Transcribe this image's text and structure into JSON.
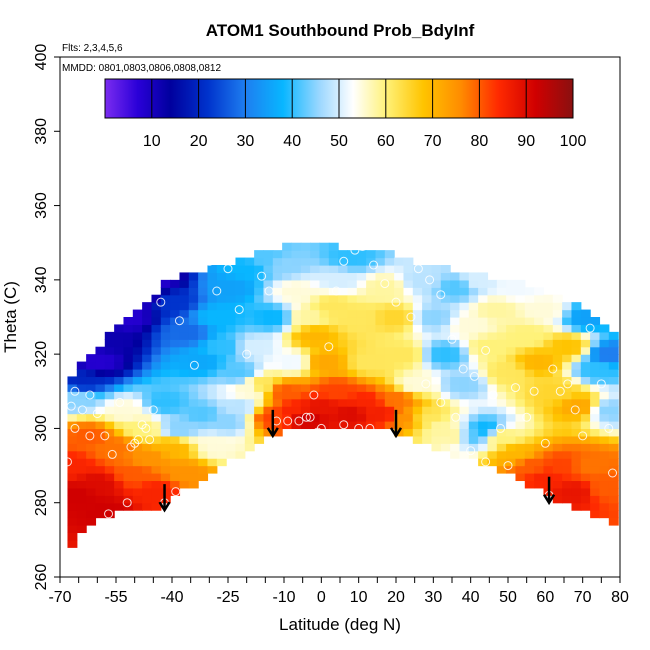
{
  "chart_data": {
    "type": "heatmap",
    "title": "ATOM1 Southbound Prob_BdyInf",
    "notes": {
      "flights": "Flts: 2,3,4,5,6",
      "mmdd": "MMDD: 0801,0803,0806,0808,0812"
    },
    "xlabel": "Latitude (deg N)",
    "ylabel": "Theta (C)",
    "xlim": [
      -70,
      80
    ],
    "ylim": [
      260,
      400
    ],
    "x_ticks_major": [
      -70,
      -55,
      -40,
      -25,
      -10,
      0,
      10,
      20,
      30,
      40,
      50,
      60,
      70,
      80
    ],
    "x_ticks_minor_step": 5,
    "y_ticks": [
      260,
      280,
      300,
      320,
      340,
      360,
      380,
      400
    ],
    "colorbar": {
      "min": 0,
      "max": 100,
      "ticks": [
        10,
        20,
        30,
        40,
        50,
        60,
        70,
        80,
        90,
        100
      ],
      "stops": [
        {
          "v": 0,
          "c": "#7b2cf0"
        },
        {
          "v": 7,
          "c": "#2a00d8"
        },
        {
          "v": 14,
          "c": "#00009e"
        },
        {
          "v": 22,
          "c": "#0033cc"
        },
        {
          "v": 30,
          "c": "#1e7ef0"
        },
        {
          "v": 38,
          "c": "#08b6ff"
        },
        {
          "v": 46,
          "c": "#9ed8ff"
        },
        {
          "v": 53,
          "c": "#ffffff"
        },
        {
          "v": 60,
          "c": "#fff27a"
        },
        {
          "v": 68,
          "c": "#ffc400"
        },
        {
          "v": 76,
          "c": "#ff8c00"
        },
        {
          "v": 84,
          "c": "#ff2a00"
        },
        {
          "v": 92,
          "c": "#d00000"
        },
        {
          "v": 100,
          "c": "#8a1010"
        }
      ]
    },
    "lower_boundary": [
      [
        -68,
        267
      ],
      [
        -62,
        274
      ],
      [
        -55,
        278
      ],
      [
        -48,
        279
      ],
      [
        -43,
        278
      ],
      [
        -38,
        283
      ],
      [
        -30,
        287
      ],
      [
        -23,
        292
      ],
      [
        -16,
        296
      ],
      [
        -10,
        300
      ],
      [
        -5,
        301
      ],
      [
        0,
        300
      ],
      [
        5,
        301
      ],
      [
        12,
        301
      ],
      [
        20,
        299
      ],
      [
        28,
        296
      ],
      [
        35,
        293
      ],
      [
        42,
        291
      ],
      [
        50,
        288
      ],
      [
        57,
        284
      ],
      [
        63,
        281
      ],
      [
        70,
        278
      ],
      [
        78,
        274
      ]
    ],
    "upper_boundary": [
      [
        -68,
        313
      ],
      [
        -62,
        320
      ],
      [
        -55,
        327
      ],
      [
        -48,
        333
      ],
      [
        -42,
        339
      ],
      [
        -35,
        342
      ],
      [
        -25,
        344
      ],
      [
        -15,
        348
      ],
      [
        -5,
        350
      ],
      [
        5,
        349
      ],
      [
        15,
        348
      ],
      [
        25,
        345
      ],
      [
        35,
        343
      ],
      [
        45,
        341
      ],
      [
        55,
        339
      ],
      [
        65,
        335
      ],
      [
        72,
        332
      ],
      [
        78,
        326
      ]
    ],
    "value_nodes": [
      [
        -67,
        290,
        85
      ],
      [
        -65,
        282,
        92
      ],
      [
        -62,
        298,
        80
      ],
      [
        -60,
        285,
        90
      ],
      [
        -58,
        278,
        92
      ],
      [
        -55,
        295,
        78
      ],
      [
        -52,
        305,
        55
      ],
      [
        -50,
        288,
        80
      ],
      [
        -48,
        300,
        60
      ],
      [
        -46,
        292,
        75
      ],
      [
        -44,
        283,
        85
      ],
      [
        -42,
        307,
        40
      ],
      [
        -40,
        295,
        70
      ],
      [
        -38,
        300,
        45
      ],
      [
        -36,
        288,
        75
      ],
      [
        -32,
        304,
        42
      ],
      [
        -28,
        295,
        55
      ],
      [
        -25,
        302,
        45
      ],
      [
        -22,
        306,
        48
      ],
      [
        -19,
        310,
        55
      ],
      [
        -16,
        312,
        62
      ],
      [
        -13,
        303,
        82
      ],
      [
        -10,
        310,
        80
      ],
      [
        -7,
        305,
        85
      ],
      [
        -4,
        303,
        92
      ],
      [
        0,
        306,
        88
      ],
      [
        4,
        310,
        82
      ],
      [
        8,
        304,
        90
      ],
      [
        12,
        307,
        85
      ],
      [
        16,
        304,
        86
      ],
      [
        20,
        308,
        78
      ],
      [
        23,
        303,
        75
      ],
      [
        28,
        303,
        62
      ],
      [
        32,
        300,
        58
      ],
      [
        36,
        298,
        58
      ],
      [
        40,
        298,
        42
      ],
      [
        44,
        300,
        38
      ],
      [
        48,
        298,
        60
      ],
      [
        52,
        293,
        70
      ],
      [
        56,
        290,
        80
      ],
      [
        60,
        287,
        85
      ],
      [
        64,
        290,
        82
      ],
      [
        68,
        283,
        88
      ],
      [
        72,
        290,
        78
      ],
      [
        76,
        284,
        80
      ],
      [
        -66,
        308,
        45
      ],
      [
        -64,
        313,
        20
      ],
      [
        -60,
        318,
        8
      ],
      [
        -56,
        324,
        12
      ],
      [
        -52,
        330,
        8
      ],
      [
        -48,
        336,
        5
      ],
      [
        -44,
        341,
        8
      ],
      [
        -40,
        334,
        22
      ],
      [
        -36,
        326,
        28
      ],
      [
        -32,
        318,
        36
      ],
      [
        -28,
        330,
        38
      ],
      [
        -24,
        338,
        35
      ],
      [
        -20,
        343,
        38
      ],
      [
        -15,
        346,
        42
      ],
      [
        -10,
        344,
        45
      ],
      [
        -7,
        337,
        55
      ],
      [
        -4,
        330,
        58
      ],
      [
        -2,
        325,
        70
      ],
      [
        1,
        318,
        72
      ],
      [
        3,
        333,
        62
      ],
      [
        5,
        340,
        50
      ],
      [
        8,
        346,
        40
      ],
      [
        10,
        330,
        62
      ],
      [
        13,
        318,
        62
      ],
      [
        17,
        338,
        58
      ],
      [
        20,
        330,
        65
      ],
      [
        22,
        320,
        62
      ],
      [
        25,
        312,
        55
      ],
      [
        27,
        340,
        48
      ],
      [
        30,
        330,
        45
      ],
      [
        33,
        320,
        40
      ],
      [
        36,
        338,
        42
      ],
      [
        38,
        312,
        45
      ],
      [
        40,
        328,
        55
      ],
      [
        42,
        340,
        50
      ],
      [
        45,
        322,
        60
      ],
      [
        47,
        332,
        58
      ],
      [
        50,
        315,
        62
      ],
      [
        52,
        338,
        52
      ],
      [
        55,
        325,
        60
      ],
      [
        58,
        318,
        70
      ],
      [
        60,
        332,
        55
      ],
      [
        63,
        310,
        65
      ],
      [
        66,
        322,
        68
      ],
      [
        69,
        306,
        72
      ],
      [
        71,
        330,
        35
      ],
      [
        74,
        316,
        40
      ],
      [
        77,
        320,
        30
      ],
      [
        77,
        305,
        45
      ],
      [
        -18,
        322,
        50
      ],
      [
        -22,
        315,
        42
      ],
      [
        -13,
        330,
        38
      ],
      [
        -8,
        318,
        52
      ],
      [
        -26,
        322,
        40
      ]
    ],
    "observation_points": [
      [
        -68,
        291
      ],
      [
        -66,
        300
      ],
      [
        -62,
        309
      ],
      [
        -60,
        304
      ],
      [
        -58,
        298
      ],
      [
        -57,
        277
      ],
      [
        -56,
        293
      ],
      [
        -54,
        307
      ],
      [
        -52,
        280
      ],
      [
        -51,
        295
      ],
      [
        -50,
        296
      ],
      [
        -49,
        297
      ],
      [
        -48,
        301
      ],
      [
        -47,
        300
      ],
      [
        -46,
        297
      ],
      [
        -45,
        305
      ],
      [
        -42,
        280
      ],
      [
        -39,
        283
      ],
      [
        -62,
        298
      ],
      [
        -64,
        305
      ],
      [
        -66,
        310
      ],
      [
        -67,
        306
      ],
      [
        -44,
        341
      ],
      [
        -43,
        334
      ],
      [
        -38,
        329
      ],
      [
        -34,
        317
      ],
      [
        -30,
        345
      ],
      [
        -28,
        337
      ],
      [
        -25,
        343
      ],
      [
        -22,
        332
      ],
      [
        -20,
        320
      ],
      [
        -16,
        341
      ],
      [
        -14,
        337
      ],
      [
        -12,
        302
      ],
      [
        -9,
        302
      ],
      [
        -6,
        302
      ],
      [
        -4,
        303
      ],
      [
        -3,
        303
      ],
      [
        -1,
        299
      ],
      [
        0,
        300
      ],
      [
        3,
        298
      ],
      [
        6,
        301
      ],
      [
        10,
        300
      ],
      [
        13,
        300
      ],
      [
        18,
        298
      ],
      [
        -2,
        309
      ],
      [
        2,
        322
      ],
      [
        4,
        337
      ],
      [
        6,
        345
      ],
      [
        9,
        348
      ],
      [
        11,
        349
      ],
      [
        14,
        344
      ],
      [
        17,
        339
      ],
      [
        20,
        334
      ],
      [
        24,
        330
      ],
      [
        26,
        343
      ],
      [
        29,
        340
      ],
      [
        32,
        336
      ],
      [
        35,
        324
      ],
      [
        38,
        316
      ],
      [
        41,
        314
      ],
      [
        44,
        321
      ],
      [
        46,
        309
      ],
      [
        48,
        300
      ],
      [
        50,
        290
      ],
      [
        52,
        311
      ],
      [
        55,
        303
      ],
      [
        57,
        310
      ],
      [
        60,
        296
      ],
      [
        62,
        316
      ],
      [
        64,
        310
      ],
      [
        66,
        312
      ],
      [
        68,
        305
      ],
      [
        70,
        298
      ],
      [
        72,
        327
      ],
      [
        75,
        312
      ],
      [
        77,
        300
      ],
      [
        78,
        288
      ],
      [
        78,
        272
      ],
      [
        61,
        282
      ],
      [
        44,
        291
      ],
      [
        40,
        294
      ],
      [
        36,
        303
      ],
      [
        32,
        307
      ],
      [
        28,
        312
      ]
    ],
    "arrows": [
      [
        -42,
        285,
        278
      ],
      [
        -13,
        305,
        298
      ],
      [
        20,
        305,
        298
      ],
      [
        61,
        287,
        280
      ]
    ]
  }
}
